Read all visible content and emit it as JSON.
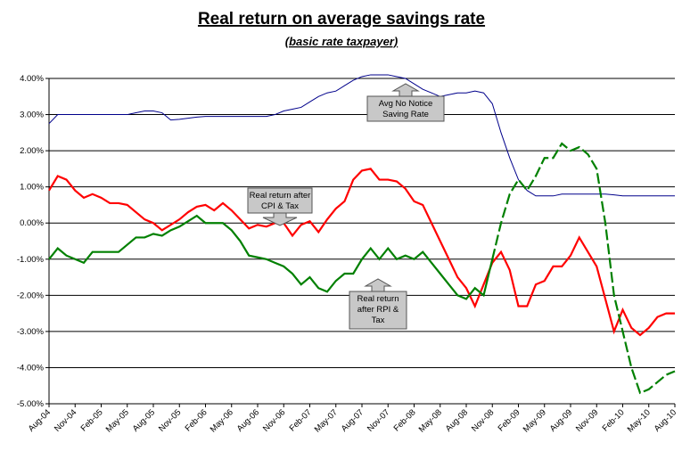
{
  "chart_data": {
    "type": "line",
    "title": "Real return on average savings rate",
    "subtitle": "(basic rate taxpayer)",
    "xlabel": "",
    "ylabel": "",
    "ylim": [
      -5,
      4
    ],
    "y_unit": "%",
    "yticks": [
      "4.00%",
      "3.00%",
      "2.00%",
      "1.00%",
      "0.00%",
      "-1.00%",
      "-2.00%",
      "-3.00%",
      "-4.00%",
      "-5.00%"
    ],
    "xticks": [
      "Aug-04",
      "Nov-04",
      "Feb-05",
      "May-05",
      "Aug-05",
      "Nov-05",
      "Feb-06",
      "May-06",
      "Aug-06",
      "Nov-06",
      "Feb-07",
      "May-07",
      "Aug-07",
      "Nov-07",
      "Feb-08",
      "May-08",
      "Aug-08",
      "Nov-08",
      "Feb-09",
      "May-09",
      "Aug-09",
      "Nov-09",
      "Feb-10",
      "May-10",
      "Aug-10"
    ],
    "x_start": "Aug-04",
    "x_frequency": "monthly",
    "grid": true,
    "legend": "none",
    "series": [
      {
        "color": "#00008B",
        "values": [
          2.75,
          3.0,
          3.0,
          3.0,
          3.0,
          3.0,
          3.0,
          3.0,
          3.0,
          3.0,
          3.05,
          3.1,
          3.1,
          3.05,
          2.85,
          2.87,
          2.9,
          2.93,
          2.95,
          2.95,
          2.95,
          2.95,
          2.95,
          2.95,
          2.95,
          2.95,
          3.0,
          3.1,
          3.15,
          3.2,
          3.35,
          3.5,
          3.6,
          3.65,
          3.8,
          3.95,
          4.05,
          4.1,
          4.1,
          4.1,
          4.05,
          4.0,
          3.85,
          3.7,
          3.6,
          3.5,
          3.55,
          3.6,
          3.6,
          3.65,
          3.6,
          3.3,
          2.5,
          1.8,
          1.2,
          0.9,
          0.75,
          0.75,
          0.75,
          0.8,
          0.8,
          0.8,
          0.8,
          0.8,
          0.8,
          0.78,
          0.75,
          0.75,
          0.75,
          0.75,
          0.75,
          0.75,
          0.75
        ]
      },
      {
        "color": "#FF0000",
        "values": [
          0.9,
          1.3,
          1.2,
          0.9,
          0.7,
          0.8,
          0.7,
          0.55,
          0.55,
          0.5,
          0.3,
          0.1,
          0.0,
          -0.2,
          -0.05,
          0.1,
          0.3,
          0.45,
          0.5,
          0.35,
          0.55,
          0.35,
          0.1,
          -0.15,
          -0.05,
          -0.1,
          0.0,
          0.0,
          -0.35,
          -0.05,
          0.05,
          -0.25,
          0.1,
          0.4,
          0.6,
          1.2,
          1.45,
          1.5,
          1.2,
          1.2,
          1.15,
          0.95,
          0.6,
          0.5,
          0.0,
          -0.5,
          -1.0,
          -1.5,
          -1.8,
          -2.3,
          -1.7,
          -1.1,
          -0.8,
          -1.3,
          -2.3,
          -2.3,
          -1.7,
          -1.6,
          -1.2,
          -1.2,
          -0.9,
          -0.4,
          -0.8,
          -1.2,
          -2.1,
          -3.0,
          -2.4,
          -2.9,
          -3.1,
          -2.9,
          -2.6,
          -2.5,
          -2.5
        ]
      },
      {
        "color": "#008000",
        "values": [
          -1.0,
          -0.7,
          -0.9,
          -1.0,
          -1.1,
          -0.8,
          -0.8,
          -0.8,
          -0.8,
          -0.6,
          -0.4,
          -0.4,
          -0.3,
          -0.35,
          -0.2,
          -0.1,
          0.05,
          0.2,
          0.0,
          0.0,
          0.0,
          -0.2,
          -0.5,
          -0.9,
          -0.95,
          -1.0,
          -1.1,
          -1.2,
          -1.4,
          -1.7,
          -1.5,
          -1.8,
          -1.9,
          -1.6,
          -1.4,
          -1.4,
          -1.0,
          -0.7,
          -1.0,
          -0.7,
          -1.0,
          -0.9,
          -1.0,
          -0.8,
          -1.1,
          -1.4,
          -1.7,
          -2.0,
          -2.1,
          -1.8,
          -2.0,
          -1.0,
          0.0,
          0.8,
          1.2,
          0.9,
          1.3,
          1.8,
          1.8,
          2.2,
          2.0,
          2.1,
          1.9,
          1.5,
          0.0,
          -2.0,
          -3.0,
          -4.0,
          -4.7,
          -4.6,
          -4.4,
          -4.2,
          -4.1
        ]
      }
    ],
    "annotations": [
      {
        "lines": [
          "Avg No Notice",
          "Saving Rate"
        ]
      },
      {
        "lines": [
          "Real return after",
          "CPI & Tax"
        ]
      },
      {
        "lines": [
          "Real return",
          "after RPI &",
          "Tax"
        ]
      }
    ]
  }
}
